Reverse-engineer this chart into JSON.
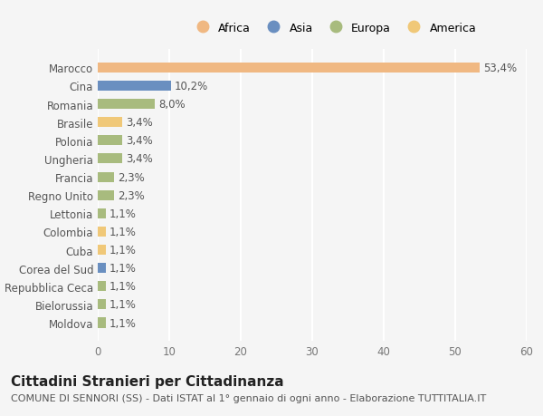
{
  "categories": [
    "Marocco",
    "Cina",
    "Romania",
    "Brasile",
    "Polonia",
    "Ungheria",
    "Francia",
    "Regno Unito",
    "Lettonia",
    "Colombia",
    "Cuba",
    "Corea del Sud",
    "Repubblica Ceca",
    "Bielorussia",
    "Moldova"
  ],
  "values": [
    53.4,
    10.2,
    8.0,
    3.4,
    3.4,
    3.4,
    2.3,
    2.3,
    1.1,
    1.1,
    1.1,
    1.1,
    1.1,
    1.1,
    1.1
  ],
  "labels": [
    "53,4%",
    "10,2%",
    "8,0%",
    "3,4%",
    "3,4%",
    "3,4%",
    "2,3%",
    "2,3%",
    "1,1%",
    "1,1%",
    "1,1%",
    "1,1%",
    "1,1%",
    "1,1%",
    "1,1%"
  ],
  "colors": [
    "#F0B882",
    "#6A8FC0",
    "#A8BB7E",
    "#F0C878",
    "#A8BB7E",
    "#A8BB7E",
    "#A8BB7E",
    "#A8BB7E",
    "#A8BB7E",
    "#F0C878",
    "#F0C878",
    "#6A8FC0",
    "#A8BB7E",
    "#A8BB7E",
    "#A8BB7E"
  ],
  "legend_labels": [
    "Africa",
    "Asia",
    "Europa",
    "America"
  ],
  "legend_colors": [
    "#F0B882",
    "#6A8FC0",
    "#A8BB7E",
    "#F0C878"
  ],
  "xlim": [
    0,
    60
  ],
  "xticks": [
    0,
    10,
    20,
    30,
    40,
    50,
    60
  ],
  "title": "Cittadini Stranieri per Cittadinanza",
  "subtitle": "COMUNE DI SENNORI (SS) - Dati ISTAT al 1° gennaio di ogni anno - Elaborazione TUTTITALIA.IT",
  "background_color": "#f5f5f5",
  "bar_height": 0.55,
  "grid_color": "#ffffff",
  "title_fontsize": 11,
  "subtitle_fontsize": 8,
  "tick_fontsize": 8.5,
  "label_fontsize": 8.5
}
